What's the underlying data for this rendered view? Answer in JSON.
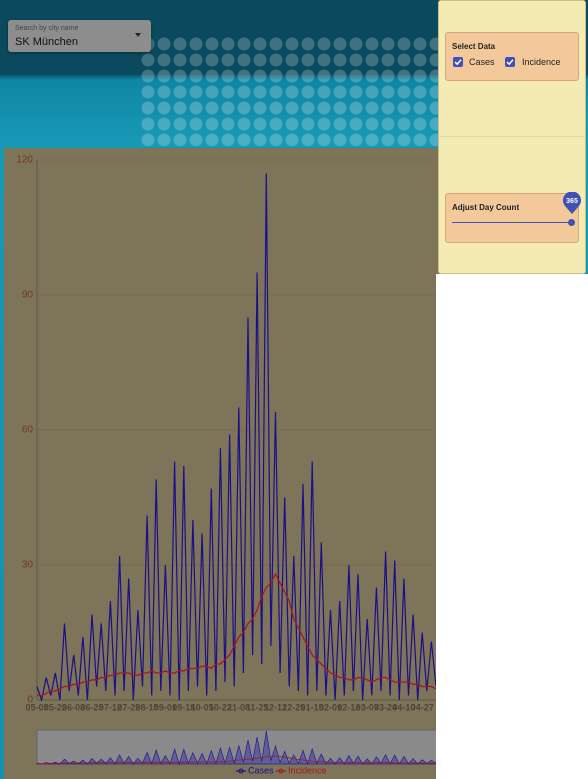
{
  "search": {
    "label": "Search by city name",
    "value": "SK München"
  },
  "panel": {
    "select_title": "Select Data",
    "options": [
      "Cases",
      "Incidence"
    ],
    "slider_title": "Adjust Day Count",
    "slider_value": 365
  },
  "chart_data": {
    "type": "line",
    "categories": [
      "05-05",
      null,
      null,
      null,
      "05-22",
      null,
      null,
      null,
      "06-08",
      null,
      null,
      null,
      "06-25",
      null,
      null,
      null,
      "07-12",
      null,
      null,
      null,
      "07-29",
      null,
      null,
      null,
      "08-15",
      null,
      null,
      null,
      "09-01",
      null,
      null,
      null,
      "09-18",
      null,
      null,
      null,
      "10-05",
      null,
      null,
      null,
      "10-22",
      null,
      null,
      null,
      "11-08",
      null,
      null,
      null,
      "11-25",
      null,
      null,
      null,
      "12-12",
      null,
      null,
      null,
      "12-29",
      null,
      null,
      null,
      "01-15",
      null,
      null,
      null,
      "02-01",
      null,
      null,
      null,
      "02-18",
      null,
      null,
      null,
      "03-07",
      null,
      null,
      null,
      "03-24",
      null,
      null,
      null,
      "04-10",
      null,
      null,
      null,
      "04-27",
      null,
      null,
      null
    ],
    "series": [
      {
        "name": "Cases",
        "color": "#1c0f8a",
        "values": [
          3,
          0,
          5,
          1,
          6,
          0,
          17,
          2,
          10,
          1,
          14,
          0,
          19,
          3,
          17,
          2,
          22,
          1,
          32,
          2,
          27,
          0,
          20,
          3,
          41,
          1,
          49,
          2,
          30,
          1,
          53,
          0,
          52,
          2,
          40,
          3,
          37,
          1,
          47,
          2,
          56,
          4,
          59,
          3,
          65,
          6,
          85,
          10,
          95,
          8,
          117,
          12,
          64,
          6,
          45,
          3,
          32,
          2,
          48,
          1,
          53,
          2,
          35,
          1,
          20,
          0,
          22,
          1,
          30,
          2,
          28,
          0,
          18,
          1,
          25,
          2,
          33,
          1,
          31,
          0,
          27,
          1,
          19,
          0,
          15,
          2,
          13,
          3
        ]
      },
      {
        "name": "Incidence",
        "color": "#a3191c",
        "values": [
          1,
          1,
          1.5,
          2,
          2,
          2.5,
          3,
          3,
          3.5,
          3.5,
          4,
          4,
          4.5,
          4.5,
          5,
          5,
          5.5,
          5.5,
          6,
          6,
          6,
          5.5,
          5.5,
          6,
          6,
          6.5,
          6,
          6,
          6.5,
          6,
          6,
          6.5,
          6.5,
          7,
          7,
          7,
          7.5,
          7.5,
          7,
          8,
          8,
          9,
          10,
          12,
          14,
          15,
          17,
          18,
          20,
          23,
          25,
          26,
          28,
          26,
          24,
          22,
          18,
          16,
          14,
          12,
          10,
          9,
          8,
          7,
          6,
          5.5,
          5,
          5,
          4.5,
          4.5,
          5,
          5,
          4.5,
          4,
          4.5,
          5,
          5,
          4.5,
          4,
          4,
          4,
          4,
          3.5,
          3.5,
          3,
          3,
          3,
          2.5
        ]
      }
    ],
    "ylim": [
      0,
      120
    ],
    "yticks": [
      0,
      30,
      60,
      90,
      120
    ],
    "grid": true
  }
}
